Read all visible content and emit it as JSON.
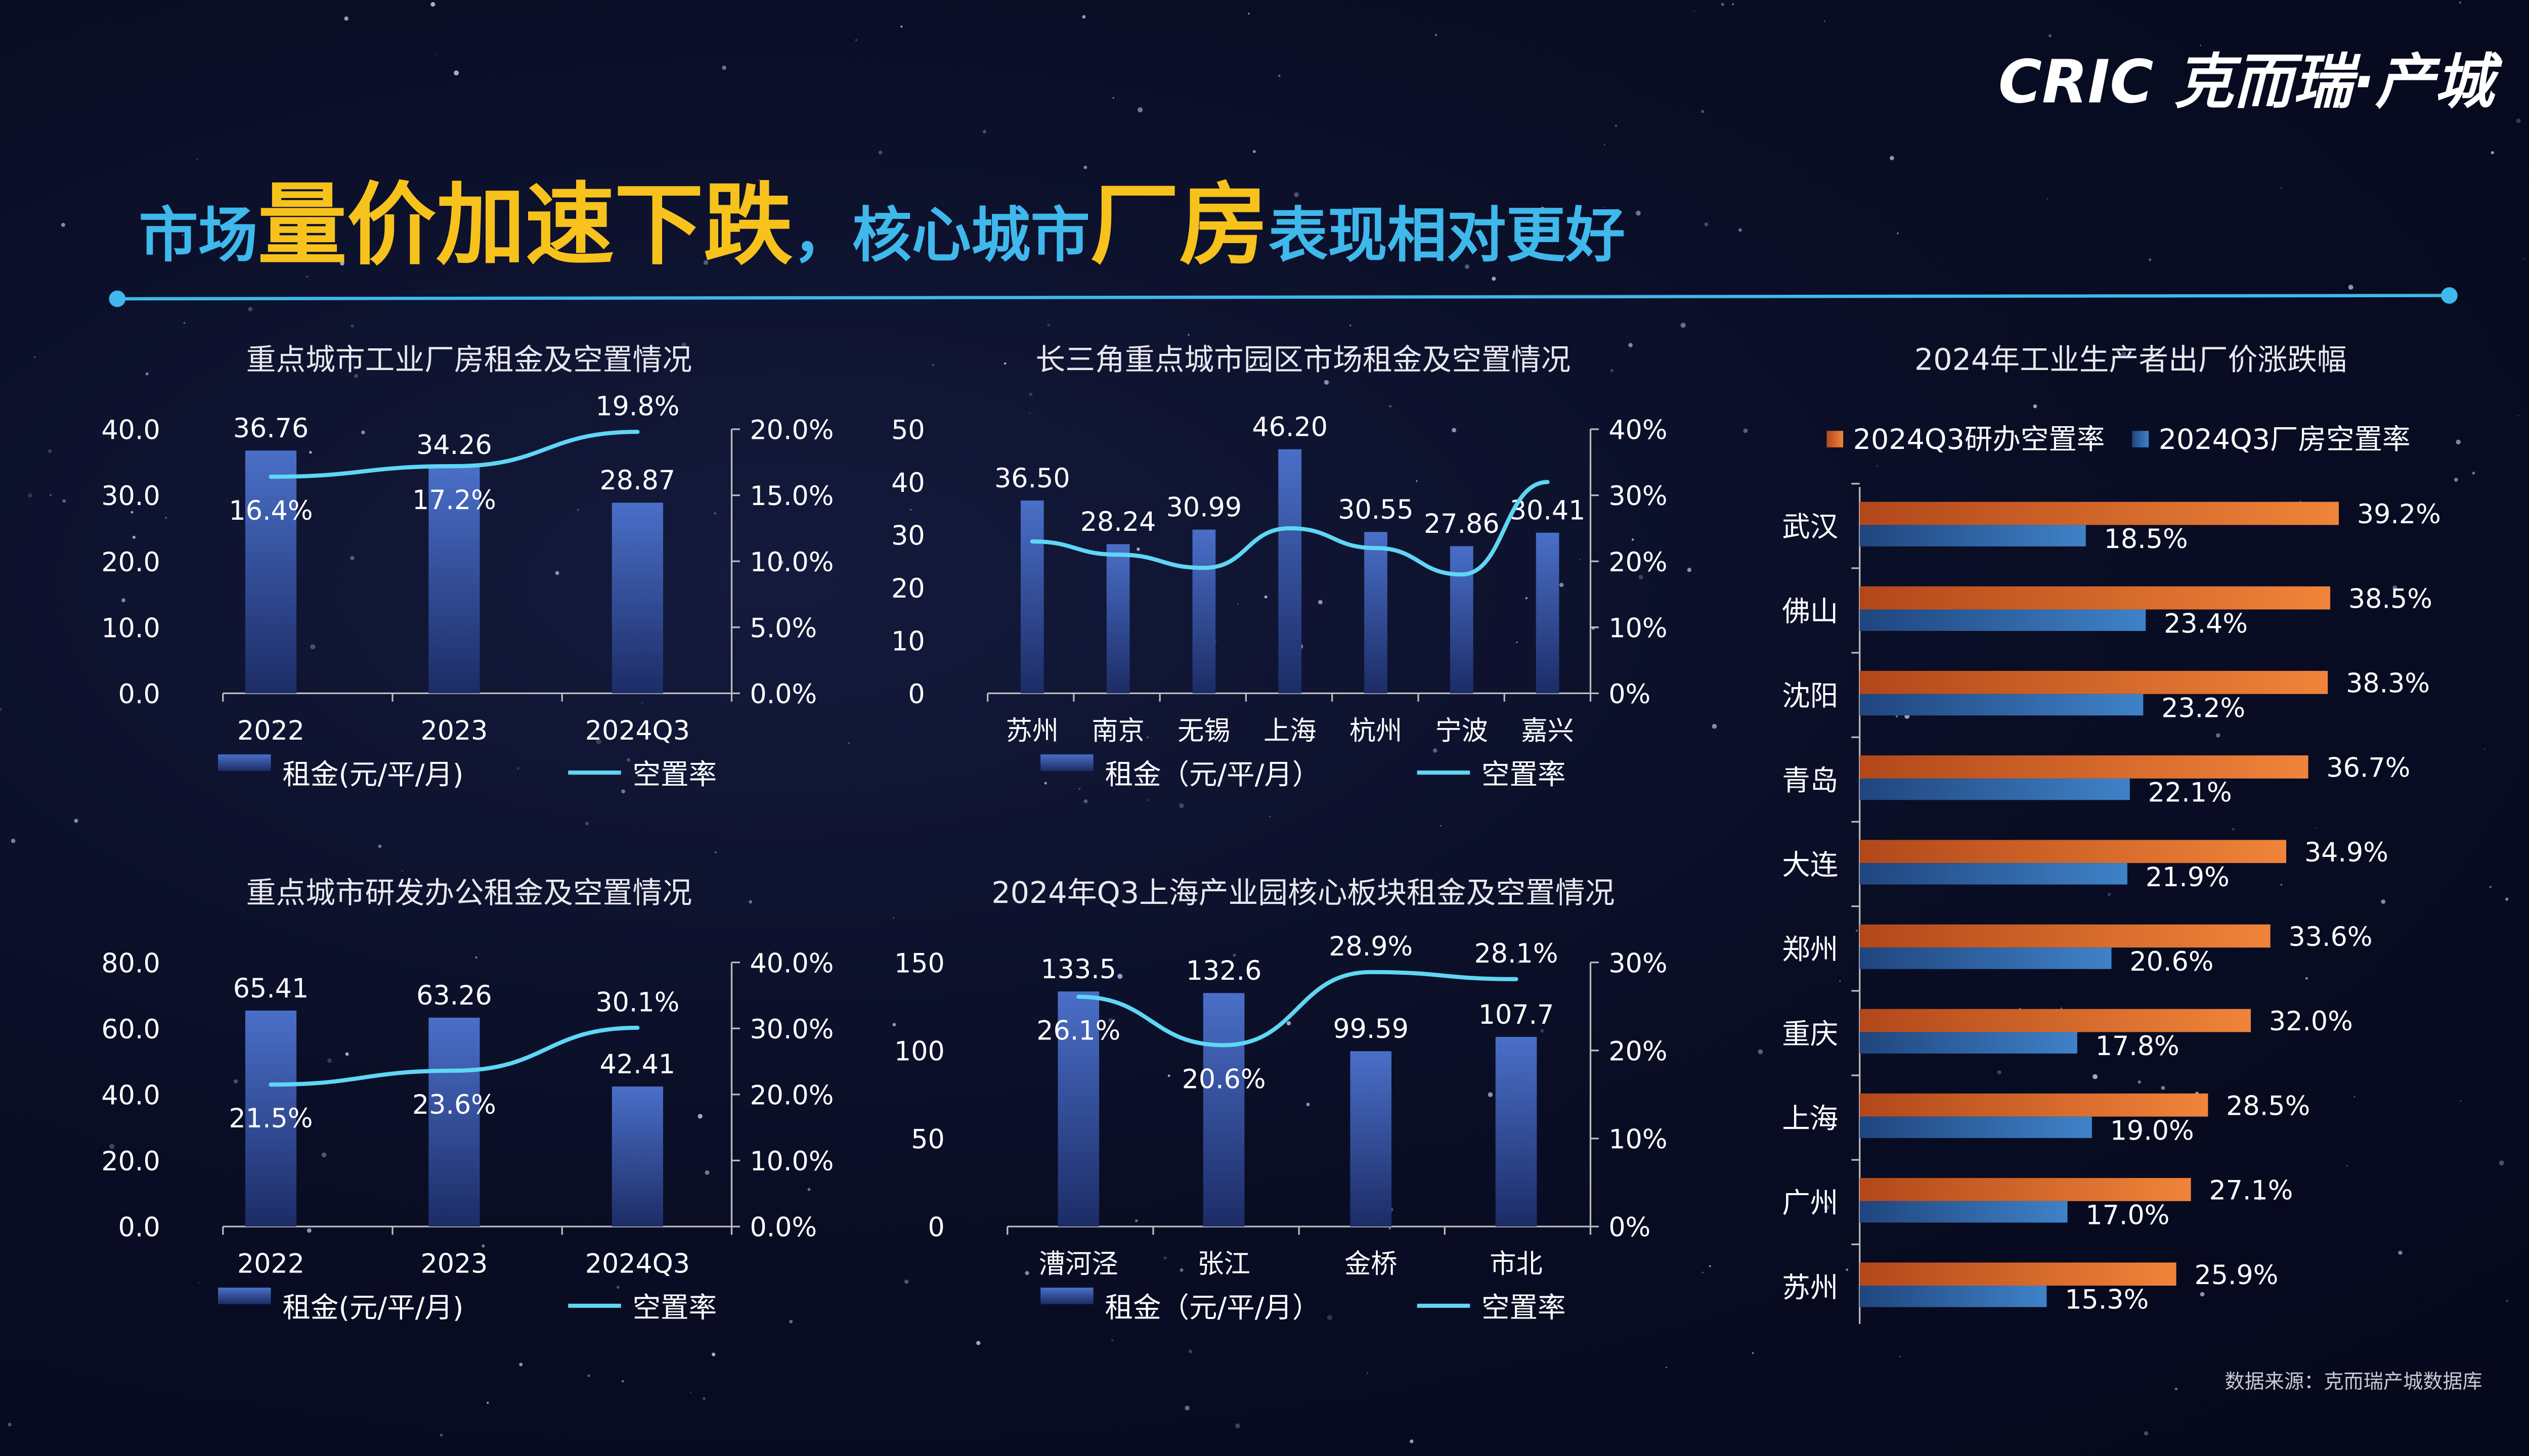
{
  "logo": {
    "text": "CRIC 克而瑞·产城"
  },
  "headline": {
    "parts": [
      "市场",
      "量价加速下跌",
      "，核心城市",
      "厂房",
      "表现相对更好"
    ]
  },
  "colors": {
    "cyan": "#3fb8ec",
    "yellow": "#f7c21c",
    "bar_blue": "#3d5fb0",
    "line": "#5fd6f4",
    "orange": "#e8742a",
    "hbar_blue": "#3a78c0"
  },
  "source": "数据来源：克而瑞产城数据库",
  "chart_data": [
    {
      "type": "bar+line",
      "title": "重点城市工业厂房租金及空置情况",
      "categories": [
        "2022",
        "2023",
        "2024Q3"
      ],
      "series": [
        {
          "name": "租金(元/平/月)",
          "type": "bar",
          "values": [
            36.76,
            34.26,
            28.87
          ],
          "labels": [
            "36.76",
            "34.26",
            "28.87"
          ]
        },
        {
          "name": "空置率",
          "type": "line",
          "values": [
            16.4,
            17.2,
            19.8
          ],
          "labels": [
            "16.4%",
            "17.2%",
            "19.8%"
          ]
        }
      ],
      "y_left": {
        "range": [
          0,
          40
        ],
        "ticks": [
          "0.0",
          "10.0",
          "20.0",
          "30.0",
          "40.0"
        ]
      },
      "y_right": {
        "range": [
          0,
          20
        ],
        "ticks": [
          "0.0%",
          "5.0%",
          "10.0%",
          "15.0%",
          "20.0%"
        ]
      },
      "legend": "bottom"
    },
    {
      "type": "bar+line",
      "title": "长三角重点城市园区市场租金及空置情况",
      "categories": [
        "苏州",
        "南京",
        "无锡",
        "上海",
        "杭州",
        "宁波",
        "嘉兴"
      ],
      "series": [
        {
          "name": "租金（元/平/月）",
          "type": "bar",
          "values": [
            36.5,
            28.24,
            30.99,
            46.2,
            30.55,
            27.86,
            30.41
          ],
          "labels": [
            "36.50",
            "28.24",
            "30.99",
            "46.20",
            "30.55",
            "27.86",
            "30.41"
          ]
        },
        {
          "name": "空置率",
          "type": "line",
          "values": [
            23,
            21,
            19,
            25,
            22,
            18,
            32
          ],
          "labels": []
        }
      ],
      "y_left": {
        "range": [
          0,
          50
        ],
        "ticks": [
          "0",
          "10",
          "20",
          "30",
          "40",
          "50"
        ]
      },
      "y_right": {
        "range": [
          0,
          40
        ],
        "ticks": [
          "0%",
          "10%",
          "20%",
          "30%",
          "40%"
        ]
      },
      "legend": "bottom"
    },
    {
      "type": "bar+line",
      "title": "重点城市研发办公租金及空置情况",
      "categories": [
        "2022",
        "2023",
        "2024Q3"
      ],
      "series": [
        {
          "name": "租金(元/平/月)",
          "type": "bar",
          "values": [
            65.41,
            63.26,
            42.41
          ],
          "labels": [
            "65.41",
            "63.26",
            "42.41"
          ]
        },
        {
          "name": "空置率",
          "type": "line",
          "values": [
            21.5,
            23.6,
            30.1
          ],
          "labels": [
            "21.5%",
            "23.6%",
            "30.1%"
          ]
        }
      ],
      "y_left": {
        "range": [
          0,
          80
        ],
        "ticks": [
          "0.0",
          "20.0",
          "40.0",
          "60.0",
          "80.0"
        ]
      },
      "y_right": {
        "range": [
          0,
          40
        ],
        "ticks": [
          "0.0%",
          "10.0%",
          "20.0%",
          "30.0%",
          "40.0%"
        ]
      },
      "legend": "bottom"
    },
    {
      "type": "bar+line",
      "title": "2024年Q3上海产业园核心板块租金及空置情况",
      "categories": [
        "漕河泾",
        "张江",
        "金桥",
        "市北"
      ],
      "series": [
        {
          "name": "租金（元/平/月）",
          "type": "bar",
          "values": [
            133.5,
            132.6,
            99.59,
            107.7
          ],
          "labels": [
            "133.5",
            "132.6",
            "99.59",
            "107.7"
          ]
        },
        {
          "name": "空置率",
          "type": "line",
          "values": [
            26.1,
            20.6,
            28.9,
            28.1
          ],
          "labels": [
            "26.1%",
            "20.6%",
            "28.9%",
            "28.1%"
          ]
        }
      ],
      "y_left": {
        "range": [
          0,
          150
        ],
        "ticks": [
          "0",
          "50",
          "100",
          "150"
        ]
      },
      "y_right": {
        "range": [
          0,
          30
        ],
        "ticks": [
          "0%",
          "10%",
          "20%",
          "30%"
        ]
      },
      "legend": "bottom"
    },
    {
      "type": "hbar",
      "title": "2024年工业生产者出厂价涨跌幅",
      "categories": [
        "武汉",
        "佛山",
        "沈阳",
        "青岛",
        "大连",
        "郑州",
        "重庆",
        "上海",
        "广州",
        "苏州"
      ],
      "series": [
        {
          "name": "2024Q3研办空置率",
          "values": [
            39.2,
            38.5,
            38.3,
            36.7,
            34.9,
            33.6,
            32.0,
            28.5,
            27.1,
            25.9
          ],
          "labels": [
            "39.2%",
            "38.5%",
            "38.3%",
            "36.7%",
            "34.9%",
            "33.6%",
            "32.0%",
            "28.5%",
            "27.1%",
            "25.9%"
          ]
        },
        {
          "name": "2024Q3厂房空置率",
          "values": [
            18.5,
            23.4,
            23.2,
            22.1,
            21.9,
            20.6,
            17.8,
            19.0,
            17.0,
            15.3
          ],
          "labels": [
            "18.5%",
            "23.4%",
            "23.2%",
            "22.1%",
            "21.9%",
            "20.6%",
            "17.8%",
            "19.0%",
            "17.0%",
            "15.3%"
          ]
        }
      ],
      "legend": "top"
    }
  ]
}
